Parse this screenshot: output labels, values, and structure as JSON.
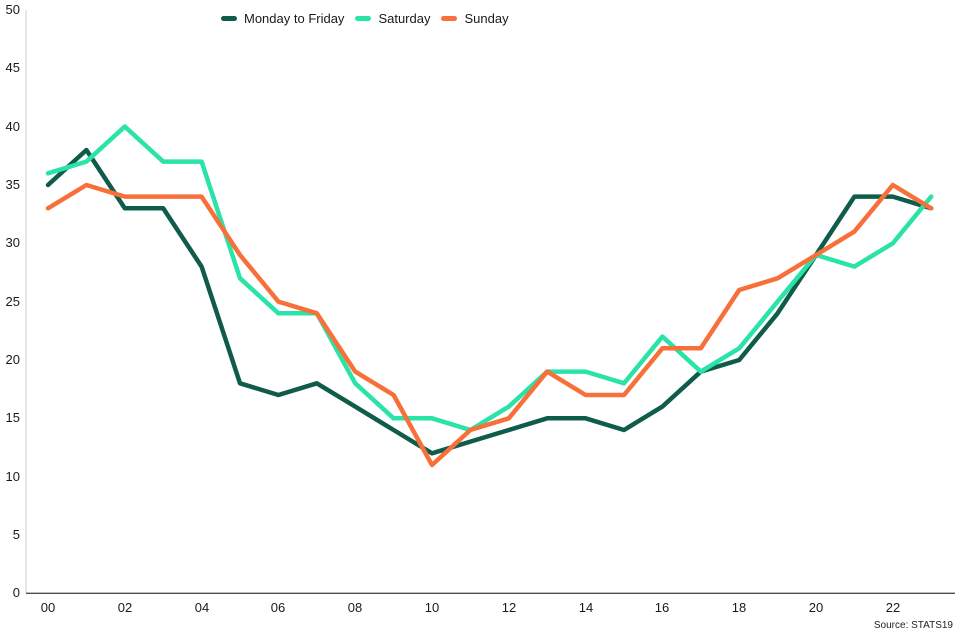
{
  "chart_data": {
    "type": "line",
    "title": "",
    "xlabel": "",
    "ylabel": "",
    "hours": [
      "00",
      "01",
      "02",
      "03",
      "04",
      "05",
      "06",
      "07",
      "08",
      "09",
      "10",
      "11",
      "12",
      "13",
      "14",
      "15",
      "16",
      "17",
      "18",
      "19",
      "20",
      "21",
      "22",
      "23"
    ],
    "x_tick_labels": [
      "00",
      "02",
      "04",
      "06",
      "08",
      "10",
      "12",
      "14",
      "16",
      "18",
      "20",
      "22"
    ],
    "y_ticks": [
      0,
      5,
      10,
      15,
      20,
      25,
      30,
      35,
      40,
      45,
      50
    ],
    "ylim": [
      0,
      50
    ],
    "grid": false,
    "legend_position": "top",
    "series": [
      {
        "name": "Monday to Friday",
        "color": "#0f5c4a",
        "values": [
          35,
          38,
          33,
          33,
          28,
          18,
          17,
          18,
          16,
          14,
          12,
          13,
          14,
          15,
          15,
          14,
          16,
          19,
          20,
          24,
          29,
          34,
          34,
          33
        ]
      },
      {
        "name": "Saturday",
        "color": "#2ae3a9",
        "values": [
          36,
          37,
          40,
          37,
          37,
          27,
          24,
          24,
          18,
          15,
          15,
          14,
          16,
          19,
          19,
          18,
          22,
          19,
          21,
          25,
          29,
          28,
          30,
          34
        ]
      },
      {
        "name": "Sunday",
        "color": "#f7703a",
        "values": [
          33,
          35,
          34,
          34,
          34,
          29,
          25,
          24,
          19,
          17,
          11,
          14,
          15,
          19,
          17,
          17,
          21,
          21,
          26,
          27,
          29,
          31,
          35,
          33
        ]
      }
    ],
    "source": "Source: STATS19"
  }
}
